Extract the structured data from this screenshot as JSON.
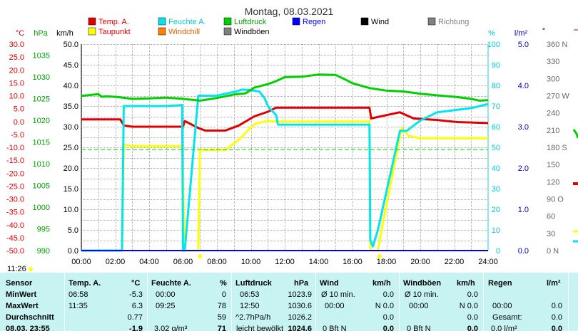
{
  "title": "Montag, 08.03.2021",
  "units": {
    "temp": "°C",
    "press": "hPa",
    "wind": "km/h",
    "humid": "%",
    "rain": "l/m²",
    "dir": "°"
  },
  "legend": [
    {
      "label": "Temp. A.",
      "color": "#e00000"
    },
    {
      "label": "Taupunkt",
      "color": "#ffff00"
    },
    {
      "label": "Feuchte A.",
      "color": "#00e5ee"
    },
    {
      "label": "Windchill",
      "color": "#ff8000"
    },
    {
      "label": "Luftdruck",
      "color": "#00d000"
    },
    {
      "label": "Windböen",
      "color": "#808080"
    },
    {
      "label": "Regen",
      "color": "#0000ff"
    },
    {
      "label": "Wind",
      "color": "#000000"
    },
    {
      "label": "Richtung",
      "color": "#808080"
    }
  ],
  "axes": {
    "temp_ticks": [
      "30.0",
      "25.0",
      "20.0",
      "15.0",
      "10.0",
      "5.0",
      "0.0",
      "-5.0",
      "-10.0",
      "-15.0",
      "-20.0",
      "-25.0",
      "-30.0",
      "-35.0",
      "-40.0",
      "-45.0",
      "-50.0"
    ],
    "press_ticks": [
      "1035",
      "1030",
      "1025",
      "1020",
      "1015",
      "1010",
      "1005",
      "1000",
      "995",
      "990"
    ],
    "wind_ticks": [
      "50.0",
      "45.0",
      "40.0",
      "35.0",
      "30.0",
      "25.0",
      "20.0",
      "15.0",
      "10.0",
      "5.0",
      "0.0"
    ],
    "humid_ticks": [
      "100",
      "90",
      "80",
      "70",
      "60",
      "50",
      "40",
      "30",
      "20",
      "10",
      "0"
    ],
    "rain_ticks": [
      "5.0",
      "4.0",
      "3.0",
      "2.0",
      "1.0",
      "0.0"
    ],
    "dir_ticks": [
      "360 N",
      "330",
      "300",
      "270 W",
      "240",
      "210",
      "180 S",
      "150",
      "120",
      "90 O",
      "60",
      "30",
      "0 N"
    ],
    "x_ticks": [
      "00:00",
      "02:00",
      "04:00",
      "06:00",
      "08:00",
      "10:00",
      "12:00",
      "14:00",
      "16:00",
      "18:00",
      "20:00",
      "22:00",
      "24:00"
    ]
  },
  "sunrise": "11:26",
  "chart_data": {
    "type": "line",
    "title": "Montag, 08.03.2021",
    "xlabel": "",
    "x_range": [
      0,
      24
    ],
    "grid": true,
    "ylim_temp": [
      -50,
      30
    ],
    "ylim_press": [
      990,
      1037.5
    ],
    "ylim_humid": [
      0,
      100
    ],
    "ylim_rain": [
      0,
      5
    ],
    "ylim_wind": [
      0,
      50
    ],
    "series": [
      {
        "name": "Temp. A.",
        "axis": "temp",
        "color": "#e00000",
        "x": [
          0,
          2.3,
          2.5,
          3,
          5,
          6,
          6.1,
          6.9,
          7.3,
          8.5,
          9.3,
          10.2,
          11,
          11.5,
          13,
          15,
          17,
          17.1,
          18.8,
          19.6,
          21,
          22.2,
          24
        ],
        "y": [
          0.8,
          0.8,
          -1.5,
          -2.0,
          -2.0,
          -2.0,
          0.2,
          -2.5,
          -3.5,
          -3.5,
          -1.5,
          2,
          3.8,
          5.4,
          5.4,
          5.4,
          5.4,
          1.2,
          3.6,
          1.2,
          0.6,
          -0.2,
          -0.6
        ]
      },
      {
        "name": "Taupunkt",
        "axis": "temp",
        "color": "#ffff00",
        "x": [
          0,
          2.4,
          2.5,
          3,
          5,
          5.95,
          6.1,
          6.5,
          6.9,
          7,
          8.5,
          9.3,
          10.2,
          10.8,
          11,
          11.5,
          16,
          17,
          17.05,
          17.5,
          17.8,
          18.9,
          19.3,
          20,
          22,
          24
        ],
        "y": [
          -50,
          -50,
          -9,
          -9.5,
          -9.5,
          -9.5,
          -50,
          -50,
          -50,
          -11,
          -11,
          -7,
          -1,
          0,
          0.1,
          0,
          0,
          0,
          -50,
          -50,
          -39,
          -2.5,
          -5.5,
          -6.5,
          -6.5,
          -6.5
        ],
        "gaps": [
          [
            6.0,
            6.9
          ]
        ]
      },
      {
        "name": "Feuchte A.",
        "axis": "humid",
        "color": "#00e5ee",
        "x": [
          0,
          2.4,
          2.5,
          3,
          5,
          5.95,
          6.0,
          6.1,
          6.9,
          7.1,
          8,
          8.5,
          9.1,
          9.5,
          10.2,
          10.5,
          10.8,
          11,
          11.5,
          11.6,
          13,
          15,
          17,
          17.05,
          17.2,
          17.5,
          18.8,
          19.2,
          20,
          21,
          22,
          23,
          24
        ],
        "y": [
          0,
          0,
          70,
          70,
          70,
          70.5,
          0,
          0,
          75,
          75,
          75,
          76,
          77,
          78,
          77.5,
          77,
          74,
          70,
          65.5,
          61,
          61,
          61,
          61,
          5,
          2,
          10,
          58,
          58,
          63,
          67,
          68,
          69,
          71
        ]
      },
      {
        "name": "Luftdruck",
        "axis": "press",
        "color": "#00d000",
        "x": [
          0,
          1,
          1.2,
          1.5,
          2.2,
          3,
          4,
          5,
          6,
          7,
          8,
          9,
          9.7,
          10.2,
          11,
          11.5,
          12,
          13,
          14,
          15,
          15.5,
          16,
          17,
          18,
          19,
          20,
          21,
          22,
          23,
          23.5,
          24
        ],
        "y": [
          1025.6,
          1026.0,
          1025.4,
          1025.5,
          1025.3,
          1024.9,
          1025.0,
          1025.2,
          1024.9,
          1024.5,
          1025.1,
          1025.9,
          1026.2,
          1027.5,
          1028.3,
          1029.0,
          1029.9,
          1030.0,
          1030.5,
          1030.4,
          1029.5,
          1028.5,
          1027.4,
          1026.8,
          1026.6,
          1026.1,
          1025.7,
          1025.4,
          1024.9,
          1024.5,
          1024.6
        ]
      },
      {
        "name": "Luftdruck Referenz",
        "axis": "press",
        "color": "#00d000",
        "dashed": true,
        "x": [
          0,
          24
        ],
        "y": [
          1013.25,
          1013.25
        ]
      },
      {
        "name": "Regen",
        "axis": "rain",
        "color": "#0000ff",
        "x": [
          0,
          24
        ],
        "y": [
          0,
          0
        ]
      }
    ]
  },
  "summary": {
    "headers": [
      "Sensor",
      "Temp. A.",
      "°C",
      "Feuchte A.",
      "%",
      "Luftdruck",
      "hPa",
      "Wind",
      "km/h",
      "Windböen",
      "km/h",
      "Regen",
      "l/m²"
    ],
    "rows": [
      {
        "label": "MinWert",
        "cells": [
          "06:58",
          "-5.3",
          "00:00",
          "0",
          "06:53",
          "1023.9",
          "Ø 10 min.",
          "0.0",
          "Ø 10 min.",
          "0.0",
          "",
          ""
        ]
      },
      {
        "label": "MaxWert",
        "cells": [
          "11:35",
          "6.3",
          "09:25",
          "78",
          "12:50",
          "1030.6",
          "00:00",
          "N 0.0",
          "00:00",
          "N 0.0",
          "00:00",
          "0.0"
        ]
      },
      {
        "label": "Durchschnitt",
        "cells": [
          "",
          "0.77",
          "",
          "59",
          "^2.7hPa/h",
          "1026.2",
          "",
          "0.0",
          "",
          "0.0",
          "Gesamt:",
          "0.0"
        ]
      },
      {
        "label": "08.03. 23:55",
        "cells": [
          "",
          "-1.9",
          "3.02 g/m³",
          "71",
          "leicht bewölkt",
          "1024.6",
          "0 Bft N",
          "0.0",
          "0 Bft N",
          "0.0",
          "0.0 l/m²",
          "0.0"
        ]
      }
    ]
  }
}
